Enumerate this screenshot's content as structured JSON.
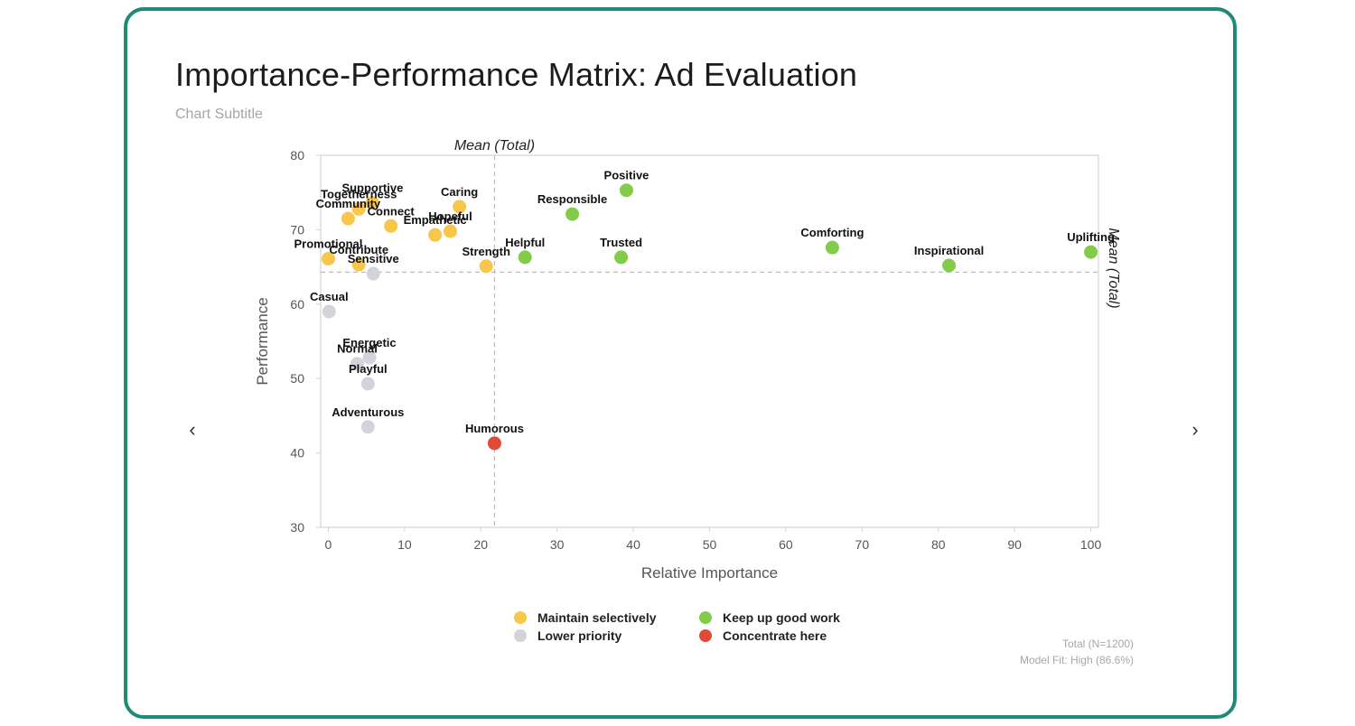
{
  "title": "Importance-Performance Matrix: Ad Evaluation",
  "subtitle": "Chart Subtitle",
  "footer": {
    "sample": "Total (N=1200)",
    "model_fit": "Model Fit: High (86.6%)"
  },
  "colors": {
    "border": "#1e8a78",
    "maintain": "#f7c64a",
    "keep": "#82cc4a",
    "lower": "#d3d3dc",
    "concentrate": "#e04a38"
  },
  "legend": [
    {
      "label": "Maintain selectively",
      "group": "maintain"
    },
    {
      "label": "Keep up good work",
      "group": "keep"
    },
    {
      "label": "Lower priority",
      "group": "lower"
    },
    {
      "label": "Concentrate here",
      "group": "concentrate"
    }
  ],
  "chart_data": {
    "type": "scatter",
    "title": "Importance-Performance Matrix: Ad Evaluation",
    "xlabel": "Relative Importance",
    "ylabel": "Performance",
    "xlim": [
      -1,
      101
    ],
    "ylim": [
      30,
      80
    ],
    "xticks": [
      0,
      10,
      20,
      30,
      40,
      50,
      60,
      70,
      80,
      90,
      100
    ],
    "yticks": [
      30,
      40,
      50,
      60,
      70,
      80
    ],
    "mean_x": 21.8,
    "mean_y": 64.3,
    "mean_label": "Mean (Total)",
    "points": [
      {
        "label": "Positive",
        "x": 39.1,
        "y": 75.3,
        "group": "keep"
      },
      {
        "label": "Responsible",
        "x": 32.0,
        "y": 72.1,
        "group": "keep"
      },
      {
        "label": "Comforting",
        "x": 66.1,
        "y": 67.6,
        "group": "keep"
      },
      {
        "label": "Uplifting",
        "x": 100.0,
        "y": 67.0,
        "group": "keep"
      },
      {
        "label": "Helpful",
        "x": 25.8,
        "y": 66.3,
        "group": "keep"
      },
      {
        "label": "Trusted",
        "x": 38.4,
        "y": 66.3,
        "group": "keep"
      },
      {
        "label": "Inspirational",
        "x": 81.4,
        "y": 65.2,
        "group": "keep"
      },
      {
        "label": "Supportive",
        "x": 5.8,
        "y": 73.6,
        "group": "maintain"
      },
      {
        "label": "Togetherness",
        "x": 4.0,
        "y": 72.8,
        "group": "maintain"
      },
      {
        "label": "Caring",
        "x": 17.2,
        "y": 73.1,
        "group": "maintain"
      },
      {
        "label": "Community",
        "x": 2.6,
        "y": 71.5,
        "group": "maintain"
      },
      {
        "label": "Connect",
        "x": 8.2,
        "y": 70.5,
        "group": "maintain"
      },
      {
        "label": "Empathetic",
        "x": 14.0,
        "y": 69.3,
        "group": "maintain"
      },
      {
        "label": "Hopeful",
        "x": 16.0,
        "y": 69.8,
        "group": "maintain"
      },
      {
        "label": "Promotional",
        "x": 0.0,
        "y": 66.1,
        "group": "maintain"
      },
      {
        "label": "Contribute",
        "x": 4.0,
        "y": 65.3,
        "group": "maintain"
      },
      {
        "label": "Strength",
        "x": 20.7,
        "y": 65.1,
        "group": "maintain"
      },
      {
        "label": "Sensitive",
        "x": 5.9,
        "y": 64.1,
        "group": "lower"
      },
      {
        "label": "Casual",
        "x": 0.1,
        "y": 59.0,
        "group": "lower"
      },
      {
        "label": "Energetic",
        "x": 5.4,
        "y": 52.8,
        "group": "lower"
      },
      {
        "label": "Normal",
        "x": 3.8,
        "y": 52.0,
        "group": "lower"
      },
      {
        "label": "Playful",
        "x": 5.2,
        "y": 49.3,
        "group": "lower"
      },
      {
        "label": "Adventurous",
        "x": 5.2,
        "y": 43.5,
        "group": "lower"
      },
      {
        "label": "Humorous",
        "x": 21.8,
        "y": 41.3,
        "group": "concentrate"
      }
    ]
  }
}
